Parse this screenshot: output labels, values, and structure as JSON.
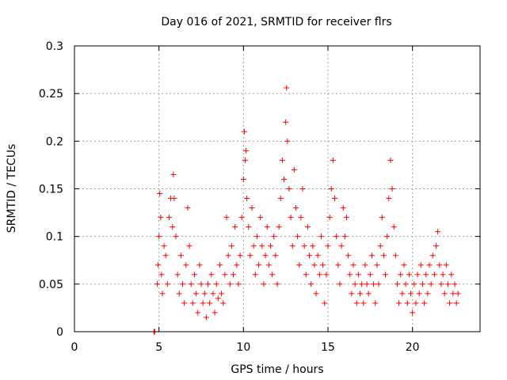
{
  "chart_data": {
    "type": "scatter",
    "title": "Day 016 of 2021, SRMTID for receiver flrs",
    "xlabel": "GPS time / hours",
    "ylabel": "SRMTID / TECUs",
    "xlim": [
      0,
      24
    ],
    "ylim": [
      0,
      0.3
    ],
    "xticks": [
      0,
      5,
      10,
      15,
      20
    ],
    "yticks": [
      0,
      0.05,
      0.1,
      0.15,
      0.2,
      0.25,
      0.3
    ],
    "ytick_labels": [
      "0",
      "0.05",
      "0.1",
      "0.15",
      "0.2",
      "0.25",
      "0.3"
    ],
    "grid": true,
    "marker": "+",
    "color": "#ff0000",
    "series": [
      {
        "points": [
          [
            4.7,
            0.0
          ],
          [
            4.72,
            0.0
          ],
          [
            4.75,
            0.0
          ],
          [
            4.9,
            0.05
          ],
          [
            4.95,
            0.07
          ],
          [
            5.0,
            0.1
          ],
          [
            5.05,
            0.145
          ],
          [
            5.1,
            0.12
          ],
          [
            5.15,
            0.06
          ],
          [
            5.2,
            0.04
          ],
          [
            5.3,
            0.09
          ],
          [
            5.4,
            0.08
          ],
          [
            5.5,
            0.05
          ],
          [
            5.6,
            0.12
          ],
          [
            5.7,
            0.14
          ],
          [
            5.8,
            0.11
          ],
          [
            5.85,
            0.165
          ],
          [
            5.9,
            0.14
          ],
          [
            6.0,
            0.1
          ],
          [
            6.1,
            0.06
          ],
          [
            6.2,
            0.04
          ],
          [
            6.3,
            0.08
          ],
          [
            6.4,
            0.05
          ],
          [
            6.5,
            0.03
          ],
          [
            6.6,
            0.07
          ],
          [
            6.7,
            0.13
          ],
          [
            6.8,
            0.09
          ],
          [
            6.9,
            0.05
          ],
          [
            7.0,
            0.03
          ],
          [
            7.1,
            0.06
          ],
          [
            7.2,
            0.04
          ],
          [
            7.3,
            0.02
          ],
          [
            7.4,
            0.07
          ],
          [
            7.5,
            0.05
          ],
          [
            7.6,
            0.03
          ],
          [
            7.7,
            0.04
          ],
          [
            7.8,
            0.015
          ],
          [
            7.9,
            0.05
          ],
          [
            8.0,
            0.03
          ],
          [
            8.1,
            0.06
          ],
          [
            8.2,
            0.04
          ],
          [
            8.3,
            0.02
          ],
          [
            8.4,
            0.05
          ],
          [
            8.5,
            0.035
          ],
          [
            8.6,
            0.07
          ],
          [
            8.7,
            0.04
          ],
          [
            8.8,
            0.03
          ],
          [
            8.9,
            0.06
          ],
          [
            9.0,
            0.12
          ],
          [
            9.1,
            0.08
          ],
          [
            9.2,
            0.05
          ],
          [
            9.3,
            0.09
          ],
          [
            9.4,
            0.06
          ],
          [
            9.5,
            0.11
          ],
          [
            9.6,
            0.07
          ],
          [
            9.7,
            0.05
          ],
          [
            9.8,
            0.08
          ],
          [
            9.9,
            0.12
          ],
          [
            10.0,
            0.16
          ],
          [
            10.05,
            0.21
          ],
          [
            10.1,
            0.18
          ],
          [
            10.15,
            0.19
          ],
          [
            10.2,
            0.14
          ],
          [
            10.3,
            0.11
          ],
          [
            10.4,
            0.08
          ],
          [
            10.5,
            0.13
          ],
          [
            10.6,
            0.09
          ],
          [
            10.7,
            0.06
          ],
          [
            10.8,
            0.1
          ],
          [
            10.9,
            0.07
          ],
          [
            11.0,
            0.12
          ],
          [
            11.1,
            0.09
          ],
          [
            11.2,
            0.05
          ],
          [
            11.3,
            0.08
          ],
          [
            11.4,
            0.11
          ],
          [
            11.5,
            0.07
          ],
          [
            11.6,
            0.09
          ],
          [
            11.7,
            0.06
          ],
          [
            11.8,
            0.1
          ],
          [
            11.9,
            0.08
          ],
          [
            12.0,
            0.05
          ],
          [
            12.1,
            0.11
          ],
          [
            12.2,
            0.14
          ],
          [
            12.3,
            0.18
          ],
          [
            12.4,
            0.16
          ],
          [
            12.5,
            0.22
          ],
          [
            12.55,
            0.256
          ],
          [
            12.6,
            0.2
          ],
          [
            12.7,
            0.15
          ],
          [
            12.8,
            0.12
          ],
          [
            12.9,
            0.09
          ],
          [
            13.0,
            0.17
          ],
          [
            13.1,
            0.13
          ],
          [
            13.2,
            0.1
          ],
          [
            13.3,
            0.07
          ],
          [
            13.4,
            0.12
          ],
          [
            13.5,
            0.15
          ],
          [
            13.6,
            0.09
          ],
          [
            13.7,
            0.06
          ],
          [
            13.8,
            0.11
          ],
          [
            13.9,
            0.08
          ],
          [
            14.0,
            0.05
          ],
          [
            14.1,
            0.09
          ],
          [
            14.2,
            0.07
          ],
          [
            14.3,
            0.04
          ],
          [
            14.4,
            0.08
          ],
          [
            14.5,
            0.06
          ],
          [
            14.6,
            0.1
          ],
          [
            14.7,
            0.07
          ],
          [
            14.8,
            0.03
          ],
          [
            14.9,
            0.06
          ],
          [
            15.0,
            0.09
          ],
          [
            15.1,
            0.12
          ],
          [
            15.2,
            0.15
          ],
          [
            15.3,
            0.18
          ],
          [
            15.4,
            0.14
          ],
          [
            15.5,
            0.1
          ],
          [
            15.6,
            0.07
          ],
          [
            15.7,
            0.05
          ],
          [
            15.8,
            0.09
          ],
          [
            15.9,
            0.13
          ],
          [
            16.0,
            0.1
          ],
          [
            16.1,
            0.12
          ],
          [
            16.2,
            0.08
          ],
          [
            16.3,
            0.06
          ],
          [
            16.4,
            0.04
          ],
          [
            16.5,
            0.07
          ],
          [
            16.6,
            0.05
          ],
          [
            16.7,
            0.03
          ],
          [
            16.8,
            0.06
          ],
          [
            16.9,
            0.04
          ],
          [
            17.0,
            0.05
          ],
          [
            17.1,
            0.03
          ],
          [
            17.2,
            0.07
          ],
          [
            17.3,
            0.05
          ],
          [
            17.4,
            0.04
          ],
          [
            17.5,
            0.06
          ],
          [
            17.6,
            0.08
          ],
          [
            17.7,
            0.05
          ],
          [
            17.8,
            0.03
          ],
          [
            17.9,
            0.07
          ],
          [
            18.0,
            0.05
          ],
          [
            18.1,
            0.09
          ],
          [
            18.2,
            0.12
          ],
          [
            18.3,
            0.08
          ],
          [
            18.4,
            0.06
          ],
          [
            18.5,
            0.1
          ],
          [
            18.6,
            0.14
          ],
          [
            18.7,
            0.18
          ],
          [
            18.8,
            0.15
          ],
          [
            18.9,
            0.11
          ],
          [
            19.0,
            0.08
          ],
          [
            19.1,
            0.05
          ],
          [
            19.2,
            0.03
          ],
          [
            19.3,
            0.06
          ],
          [
            19.4,
            0.04
          ],
          [
            19.5,
            0.07
          ],
          [
            19.6,
            0.05
          ],
          [
            19.7,
            0.03
          ],
          [
            19.8,
            0.06
          ],
          [
            19.9,
            0.04
          ],
          [
            20.0,
            0.02
          ],
          [
            20.1,
            0.05
          ],
          [
            20.2,
            0.03
          ],
          [
            20.3,
            0.06
          ],
          [
            20.4,
            0.04
          ],
          [
            20.5,
            0.07
          ],
          [
            20.6,
            0.05
          ],
          [
            20.7,
            0.03
          ],
          [
            20.8,
            0.06
          ],
          [
            20.9,
            0.04
          ],
          [
            21.0,
            0.07
          ],
          [
            21.1,
            0.05
          ],
          [
            21.2,
            0.08
          ],
          [
            21.3,
            0.06
          ],
          [
            21.4,
            0.09
          ],
          [
            21.5,
            0.105
          ],
          [
            21.6,
            0.07
          ],
          [
            21.7,
            0.05
          ],
          [
            21.8,
            0.06
          ],
          [
            21.9,
            0.04
          ],
          [
            22.0,
            0.07
          ],
          [
            22.1,
            0.05
          ],
          [
            22.2,
            0.03
          ],
          [
            22.3,
            0.06
          ],
          [
            22.4,
            0.04
          ],
          [
            22.5,
            0.05
          ],
          [
            22.6,
            0.03
          ],
          [
            22.7,
            0.04
          ]
        ]
      }
    ]
  }
}
